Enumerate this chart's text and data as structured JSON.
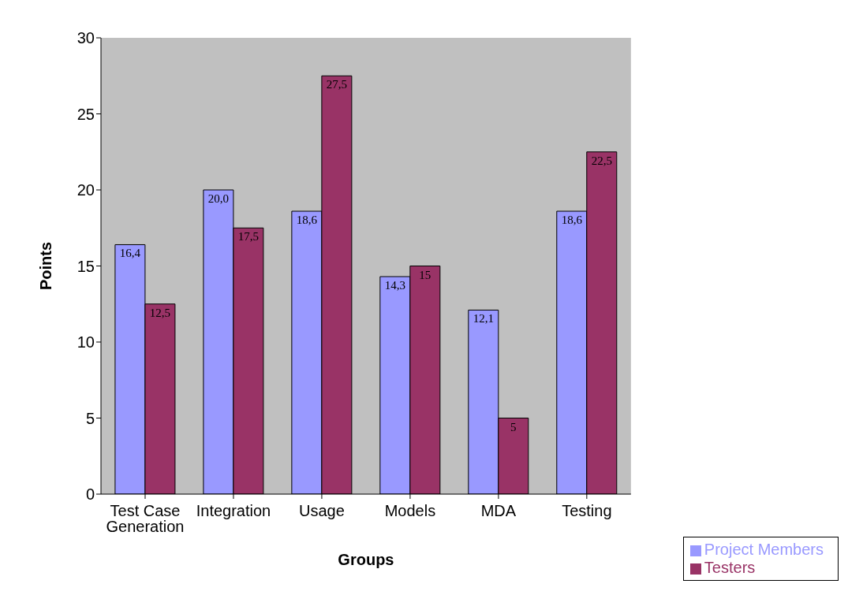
{
  "chart_data": {
    "type": "bar",
    "xlabel": "Groups",
    "ylabel": "Points",
    "categories": [
      "Test Case Generation",
      "Integration",
      "Usage",
      "Models",
      "MDA",
      "Testing"
    ],
    "series": [
      {
        "name": "Project Members",
        "color": "#9999ff",
        "values": [
          16.4,
          20.0,
          18.6,
          14.3,
          12.1,
          18.6
        ],
        "value_labels": [
          "16,4",
          "20,0",
          "18,6",
          "14,3",
          "12,1",
          "18,6"
        ]
      },
      {
        "name": "Testers",
        "color": "#993366",
        "values": [
          12.5,
          17.5,
          27.5,
          15,
          5,
          22.5
        ],
        "value_labels": [
          "12,5",
          "17,5",
          "27,5",
          "15",
          "5",
          "22,5"
        ]
      }
    ],
    "ylim": [
      0,
      30
    ],
    "yticks": [
      0,
      5,
      10,
      15,
      20,
      25,
      30
    ],
    "legend": "bottom right"
  }
}
